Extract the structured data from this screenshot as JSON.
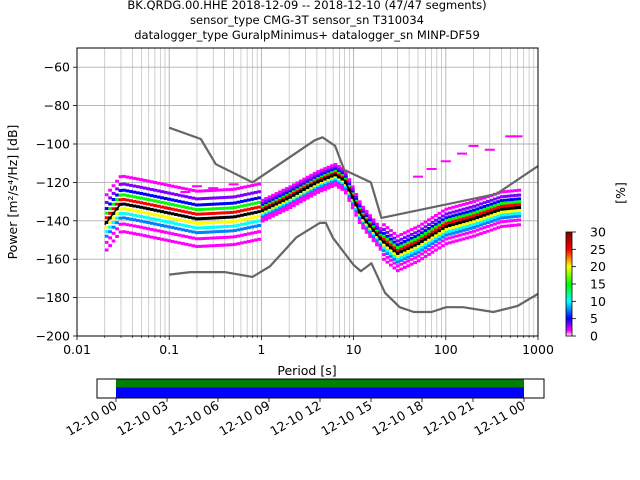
{
  "chart_data": {
    "type": "heatmap",
    "title_lines": [
      "BK.QRDG.00.HHE   2018-12-09 -- 2018-12-10  (47/47 segments)",
      "sensor_type CMG-3T sensor_sn T310034",
      "datalogger_type GuralpMinimus+ datalogger_sn MINP-DF59"
    ],
    "xlabel": "Period [s]",
    "ylabel": "Power [m²/s⁴/Hz] [dB]",
    "xscale": "log",
    "xlim": [
      0.01,
      1000
    ],
    "ylim": [
      -200,
      -50
    ],
    "grid": true,
    "x_ticks": [
      {
        "value": 0.01,
        "label": "0.01"
      },
      {
        "value": 0.1,
        "label": "0.1"
      },
      {
        "value": 1,
        "label": "1"
      },
      {
        "value": 10,
        "label": "10"
      },
      {
        "value": 100,
        "label": "100"
      },
      {
        "value": 1000,
        "label": "1000"
      }
    ],
    "y_ticks": [
      {
        "value": -60,
        "label": "−60"
      },
      {
        "value": -80,
        "label": "−80"
      },
      {
        "value": -100,
        "label": "−100"
      },
      {
        "value": -120,
        "label": "−120"
      },
      {
        "value": -140,
        "label": "−140"
      },
      {
        "value": -160,
        "label": "−160"
      },
      {
        "value": -180,
        "label": "−180"
      },
      {
        "value": -200,
        "label": "−200"
      }
    ],
    "colorbar": {
      "label": "[%]",
      "range": [
        0,
        30
      ],
      "ticks": [
        "0",
        "5",
        "10",
        "15",
        "20",
        "25",
        "30"
      ]
    },
    "series": [
      {
        "role": "new-high-noise-model",
        "color": "#666666",
        "points": [
          [
            0.1,
            -91.5
          ],
          [
            0.22,
            -97.4
          ],
          [
            0.32,
            -110.5
          ],
          [
            0.8,
            -120
          ],
          [
            3.8,
            -98
          ],
          [
            4.6,
            -96.5
          ],
          [
            6.3,
            -101
          ],
          [
            7.9,
            -113.5
          ],
          [
            15.4,
            -120
          ],
          [
            20,
            -138.5
          ],
          [
            354.8,
            -126
          ],
          [
            1000,
            -111.5
          ]
        ]
      },
      {
        "role": "new-low-noise-model",
        "color": "#666666",
        "points": [
          [
            0.1,
            -168
          ],
          [
            0.17,
            -166.7
          ],
          [
            0.4,
            -166.7
          ],
          [
            0.8,
            -169.2
          ],
          [
            1.24,
            -163.7
          ],
          [
            2.4,
            -148.6
          ],
          [
            4.3,
            -141.1
          ],
          [
            5,
            -141.1
          ],
          [
            6,
            -149
          ],
          [
            10,
            -163
          ],
          [
            12,
            -166.2
          ],
          [
            15.6,
            -162.1
          ],
          [
            21.9,
            -177.5
          ],
          [
            31.6,
            -185
          ],
          [
            45,
            -187.5
          ],
          [
            70,
            -187.5
          ],
          [
            101,
            -185
          ],
          [
            154,
            -185
          ],
          [
            328,
            -187.5
          ],
          [
            600,
            -184.4
          ],
          [
            1000,
            -178
          ]
        ]
      },
      {
        "role": "mode",
        "color": "#000000",
        "points": [
          [
            0.02,
            -142
          ],
          [
            0.03,
            -131
          ],
          [
            0.05,
            -133
          ],
          [
            0.1,
            -136
          ],
          [
            0.2,
            -139
          ],
          [
            0.5,
            -138
          ],
          [
            1,
            -135
          ],
          [
            2,
            -128
          ],
          [
            4,
            -120
          ],
          [
            6.3,
            -116
          ],
          [
            8,
            -119
          ],
          [
            12,
            -137
          ],
          [
            20,
            -150
          ],
          [
            30,
            -157
          ],
          [
            50,
            -152
          ],
          [
            100,
            -143
          ],
          [
            200,
            -139
          ],
          [
            400,
            -134
          ],
          [
            650,
            -133
          ]
        ]
      }
    ],
    "density_bands": [
      {
        "points": [
          [
            0.02,
            -142
          ],
          [
            0.03,
            -131
          ],
          [
            0.05,
            -133
          ],
          [
            0.1,
            -136
          ],
          [
            0.2,
            -139
          ],
          [
            0.5,
            -138
          ],
          [
            1,
            -135
          ],
          [
            2,
            -128
          ],
          [
            4,
            -120
          ],
          [
            6.3,
            -116
          ],
          [
            8,
            -119
          ],
          [
            12,
            -137
          ],
          [
            20,
            -150
          ],
          [
            30,
            -157
          ],
          [
            50,
            -152
          ],
          [
            100,
            -143
          ],
          [
            200,
            -139
          ],
          [
            400,
            -134
          ],
          [
            650,
            -133
          ]
        ]
      }
    ],
    "scattered_highs": [
      [
        0.2,
        -122
      ],
      [
        0.3,
        -123
      ],
      [
        0.5,
        -121
      ],
      [
        0.15,
        -125
      ],
      [
        50,
        -117
      ],
      [
        70,
        -113
      ],
      [
        100,
        -109
      ],
      [
        150,
        -105
      ],
      [
        200,
        -101
      ],
      [
        300,
        -103
      ],
      [
        500,
        -96
      ],
      [
        600,
        -96
      ]
    ],
    "time_axis": {
      "ticks": [
        "12-10 00",
        "12-10 03",
        "12-10 06",
        "12-10 09",
        "12-10 12",
        "12-10 15",
        "12-10 18",
        "12-10 21",
        "12-11 00"
      ],
      "coverage_colors": [
        "#008000",
        "#0000ff"
      ]
    }
  }
}
